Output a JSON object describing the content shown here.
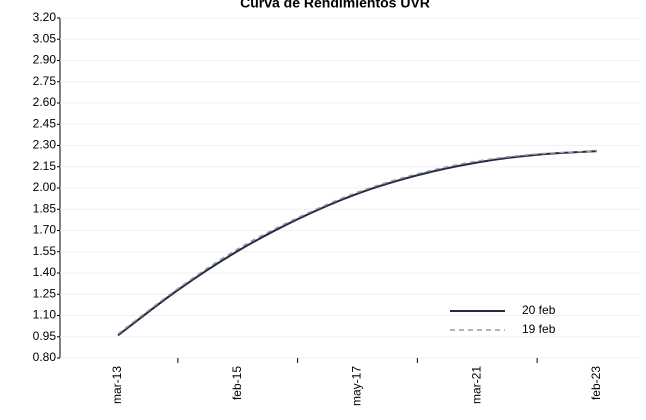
{
  "chart_data": {
    "type": "line",
    "title": "Curva de Rendimientos UVR",
    "categories": [
      "mar-13",
      null,
      "feb-15",
      null,
      "may-17",
      null,
      "mar-21",
      null,
      "feb-23"
    ],
    "series": [
      {
        "name": "20 feb",
        "color": "#1f2a44",
        "dash": false,
        "values": [
          0.96,
          1.28,
          1.555,
          1.78,
          1.96,
          2.09,
          2.18,
          2.235,
          2.26
        ]
      },
      {
        "name": "19 feb",
        "color": "#9a9a9a",
        "dash": true,
        "values": [
          0.97,
          1.29,
          1.57,
          1.79,
          1.97,
          2.1,
          2.19,
          2.24,
          2.26
        ]
      }
    ],
    "ylim": [
      0.8,
      3.2
    ],
    "yticks": [
      {
        "value": 0.8,
        "label": "0.80"
      },
      0.95,
      {
        "value": 1.1,
        "label": "1.10"
      },
      1.25,
      {
        "value": 1.4,
        "label": "1.40"
      },
      1.55,
      {
        "value": 1.7,
        "label": "1.70"
      },
      1.85,
      {
        "value": 2.0,
        "label": "2.00"
      },
      2.15,
      {
        "value": 2.3,
        "label": "2.30"
      },
      2.45,
      {
        "value": 2.6,
        "label": "2.60"
      },
      2.75,
      {
        "value": 2.9,
        "label": "2.90"
      },
      3.05,
      {
        "value": 3.2,
        "label": "3.20"
      }
    ],
    "grid": true,
    "legend": "lower-right"
  }
}
